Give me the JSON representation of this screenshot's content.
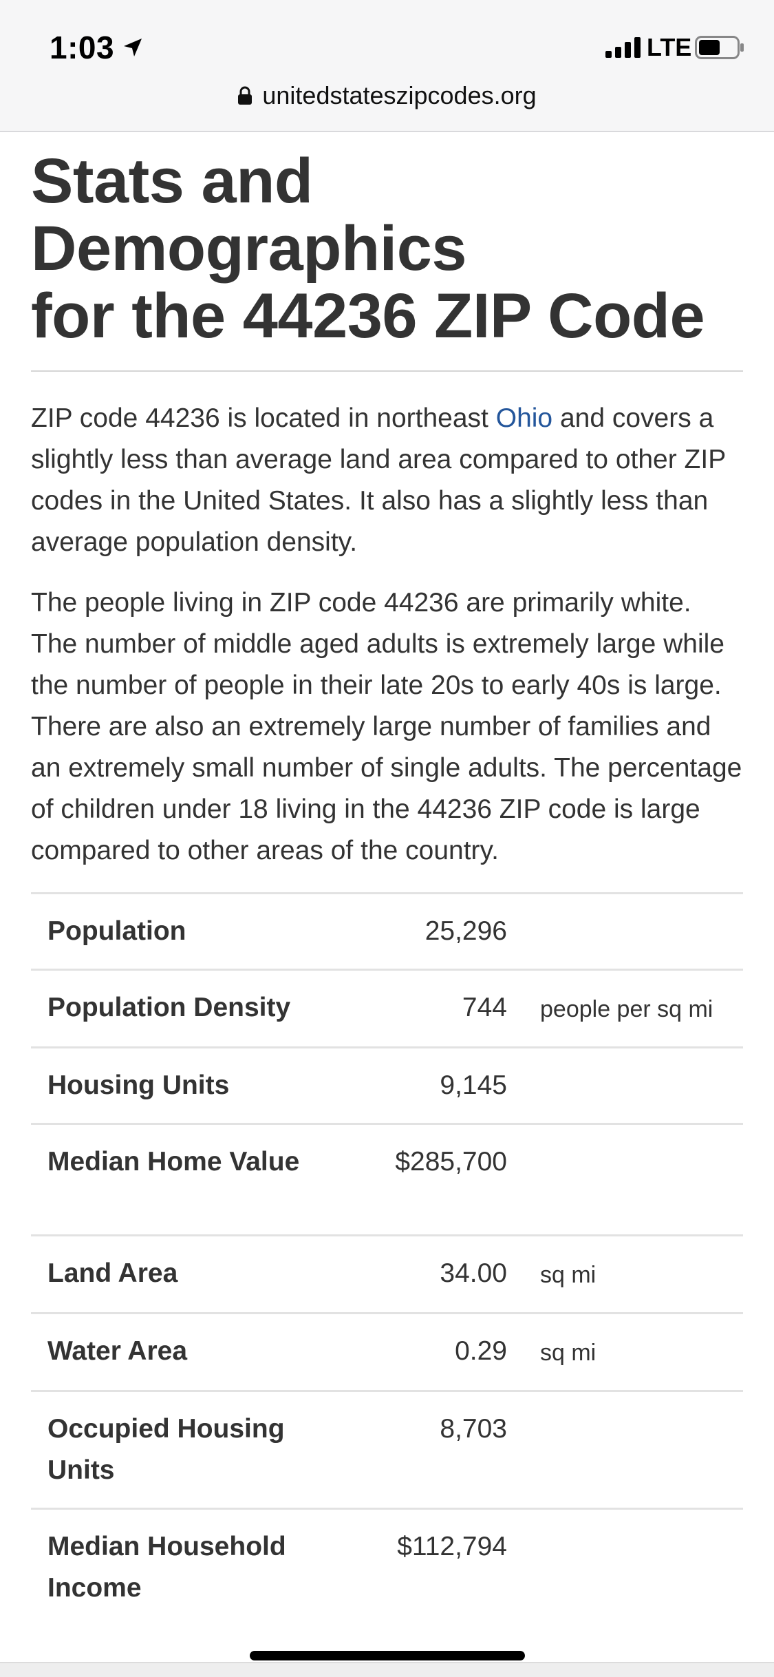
{
  "status_bar": {
    "time": "1:03",
    "network": "LTE",
    "icons": [
      "location-arrow-icon",
      "signal-bars-icon",
      "battery-icon"
    ]
  },
  "browser": {
    "url": "unitedstateszipcodes.org",
    "lock_icon": "lock-icon"
  },
  "page": {
    "title_line1": "Stats and Demographics",
    "title_line2": "for the 44236 ZIP Code",
    "para1_before_link": "ZIP code 44236 is located in northeast ",
    "para1_link": "Ohio",
    "para1_after_link": " and covers a slightly less than average land area compared to other ZIP codes in the United States. It also has a slightly less than average population density.",
    "para2": "The people living in ZIP code 44236 are primarily white. The number of middle aged adults is extremely large while the number of people in their late 20s to early 40s is large. There are also an extremely large number of families and an extremely small number of single adults. The percentage of children under 18 living in the 44236 ZIP code is large compared to other areas of the country.",
    "link_color": "#24569b"
  },
  "stats_top": [
    {
      "label": "Population",
      "value": "25,296",
      "unit": ""
    },
    {
      "label": "Population Density",
      "value": "744",
      "unit": "people per sq mi"
    },
    {
      "label": "Housing Units",
      "value": "9,145",
      "unit": ""
    },
    {
      "label": "Median Home Value",
      "value": "$285,700",
      "unit": ""
    }
  ],
  "stats_bottom": [
    {
      "label": "Land Area",
      "value": "34.00",
      "unit": "sq mi"
    },
    {
      "label": "Water Area",
      "value": "0.29",
      "unit": "sq mi"
    },
    {
      "label": "Occupied Housing Units",
      "value": "8,703",
      "unit": ""
    },
    {
      "label": "Median Household Income",
      "value": "$112,794",
      "unit": ""
    }
  ]
}
